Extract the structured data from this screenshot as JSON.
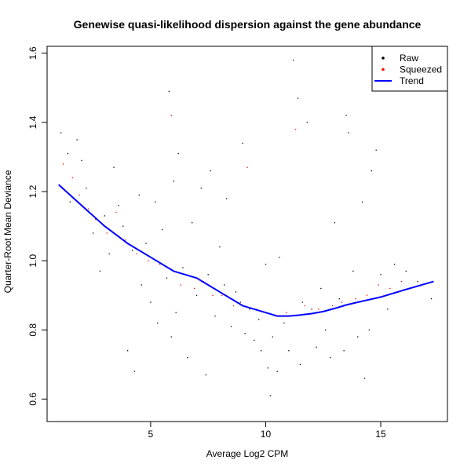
{
  "chart_data": {
    "type": "scatter",
    "title": "Genewise quasi-likelihood dispersion against the gene abundance",
    "xlabel": "Average Log2 CPM",
    "ylabel": "Quarter-Root Mean Deviance",
    "xlim": [
      0.5,
      17.9
    ],
    "ylim": [
      0.535,
      1.62
    ],
    "xticks": [
      5,
      10,
      15
    ],
    "yticks": [
      0.6,
      0.8,
      1.0,
      1.2,
      1.4,
      1.6
    ],
    "ytick_labels": [
      "0.6",
      "0.8",
      "1.0",
      "1.2",
      "1.4",
      "1.6"
    ],
    "grid": false,
    "legend_position": "top-right",
    "legend": [
      {
        "label": "Raw",
        "color": "#000000",
        "symbol": "point"
      },
      {
        "label": "Squeezed",
        "color": "#ff0000",
        "symbol": "point"
      },
      {
        "label": "Trend",
        "color": "#0000ff",
        "symbol": "line"
      }
    ],
    "series": [
      {
        "name": "Raw",
        "color": "#000000",
        "points": [
          [
            1.1,
            1.37
          ],
          [
            1.4,
            1.31
          ],
          [
            1.5,
            1.17
          ],
          [
            1.8,
            1.35
          ],
          [
            2.0,
            1.29
          ],
          [
            2.2,
            1.21
          ],
          [
            2.5,
            1.08
          ],
          [
            2.8,
            0.97
          ],
          [
            3.0,
            1.13
          ],
          [
            3.2,
            1.02
          ],
          [
            3.4,
            1.27
          ],
          [
            3.6,
            1.16
          ],
          [
            3.8,
            1.1
          ],
          [
            4.0,
            0.74
          ],
          [
            4.2,
            1.03
          ],
          [
            4.3,
            0.68
          ],
          [
            4.5,
            1.19
          ],
          [
            4.6,
            0.93
          ],
          [
            4.8,
            1.05
          ],
          [
            5.0,
            0.88
          ],
          [
            5.2,
            1.17
          ],
          [
            5.3,
            0.82
          ],
          [
            5.5,
            1.09
          ],
          [
            5.7,
            0.95
          ],
          [
            5.8,
            1.49
          ],
          [
            5.9,
            0.78
          ],
          [
            6.0,
            1.23
          ],
          [
            6.1,
            0.85
          ],
          [
            6.2,
            1.31
          ],
          [
            6.4,
            0.98
          ],
          [
            6.6,
            0.72
          ],
          [
            6.8,
            1.11
          ],
          [
            7.0,
            0.9
          ],
          [
            7.2,
            1.21
          ],
          [
            7.4,
            0.67
          ],
          [
            7.5,
            0.96
          ],
          [
            7.6,
            1.26
          ],
          [
            7.8,
            0.84
          ],
          [
            8.0,
            1.04
          ],
          [
            8.2,
            0.93
          ],
          [
            8.3,
            1.18
          ],
          [
            8.5,
            0.81
          ],
          [
            8.7,
            0.91
          ],
          [
            8.9,
            0.88
          ],
          [
            9.0,
            1.34
          ],
          [
            9.1,
            0.79
          ],
          [
            9.3,
            0.86
          ],
          [
            9.5,
            0.77
          ],
          [
            9.7,
            0.83
          ],
          [
            9.8,
            0.74
          ],
          [
            10.0,
            0.99
          ],
          [
            10.1,
            0.69
          ],
          [
            10.2,
            0.61
          ],
          [
            10.3,
            0.78
          ],
          [
            10.5,
            0.68
          ],
          [
            10.6,
            1.01
          ],
          [
            10.8,
            0.82
          ],
          [
            11.0,
            0.74
          ],
          [
            11.2,
            1.58
          ],
          [
            11.4,
            1.47
          ],
          [
            11.5,
            0.7
          ],
          [
            11.6,
            0.88
          ],
          [
            11.8,
            1.4
          ],
          [
            12.0,
            0.86
          ],
          [
            12.2,
            0.75
          ],
          [
            12.4,
            0.92
          ],
          [
            12.6,
            0.8
          ],
          [
            12.8,
            0.72
          ],
          [
            13.0,
            1.11
          ],
          [
            13.2,
            0.89
          ],
          [
            13.4,
            0.74
          ],
          [
            13.5,
            1.42
          ],
          [
            13.6,
            1.37
          ],
          [
            13.8,
            0.97
          ],
          [
            14.0,
            0.78
          ],
          [
            14.2,
            1.17
          ],
          [
            14.3,
            0.66
          ],
          [
            14.5,
            0.8
          ],
          [
            14.6,
            1.26
          ],
          [
            14.8,
            1.32
          ],
          [
            15.0,
            0.96
          ],
          [
            15.3,
            0.86
          ],
          [
            15.6,
            0.99
          ],
          [
            16.1,
            0.97
          ],
          [
            16.6,
            0.94
          ],
          [
            17.2,
            0.89
          ]
        ]
      },
      {
        "name": "Squeezed",
        "color": "#ff0000",
        "points": [
          [
            1.2,
            1.28
          ],
          [
            1.6,
            1.24
          ],
          [
            1.9,
            1.19
          ],
          [
            2.3,
            1.15
          ],
          [
            2.6,
            1.12
          ],
          [
            3.1,
            1.08
          ],
          [
            3.5,
            1.14
          ],
          [
            3.9,
            1.06
          ],
          [
            4.4,
            1.02
          ],
          [
            4.9,
            1.0
          ],
          [
            5.4,
            0.99
          ],
          [
            5.9,
            1.42
          ],
          [
            6.3,
            0.93
          ],
          [
            6.9,
            0.92
          ],
          [
            7.3,
            0.94
          ],
          [
            7.7,
            0.9
          ],
          [
            8.1,
            0.9
          ],
          [
            8.6,
            0.87
          ],
          [
            9.2,
            1.27
          ],
          [
            9.6,
            0.86
          ],
          [
            10.4,
            0.84
          ],
          [
            10.9,
            0.85
          ],
          [
            11.3,
            1.38
          ],
          [
            11.7,
            0.87
          ],
          [
            12.3,
            0.86
          ],
          [
            12.9,
            0.87
          ],
          [
            13.3,
            0.88
          ],
          [
            13.9,
            0.89
          ],
          [
            14.4,
            0.9
          ],
          [
            14.9,
            0.93
          ],
          [
            15.4,
            0.92
          ],
          [
            15.9,
            0.94
          ]
        ]
      },
      {
        "name": "Trend",
        "color": "#0000ff",
        "points": [
          [
            1.0,
            1.22
          ],
          [
            2.0,
            1.16
          ],
          [
            3.0,
            1.1
          ],
          [
            4.0,
            1.05
          ],
          [
            5.0,
            1.01
          ],
          [
            6.0,
            0.97
          ],
          [
            7.0,
            0.95
          ],
          [
            7.5,
            0.93
          ],
          [
            8.0,
            0.91
          ],
          [
            9.0,
            0.87
          ],
          [
            10.0,
            0.85
          ],
          [
            10.5,
            0.84
          ],
          [
            11.0,
            0.84
          ],
          [
            11.5,
            0.843
          ],
          [
            12.0,
            0.847
          ],
          [
            12.5,
            0.853
          ],
          [
            13.0,
            0.862
          ],
          [
            13.5,
            0.872
          ],
          [
            14.0,
            0.88
          ],
          [
            15.0,
            0.895
          ],
          [
            16.0,
            0.915
          ],
          [
            17.3,
            0.94
          ]
        ]
      }
    ]
  }
}
